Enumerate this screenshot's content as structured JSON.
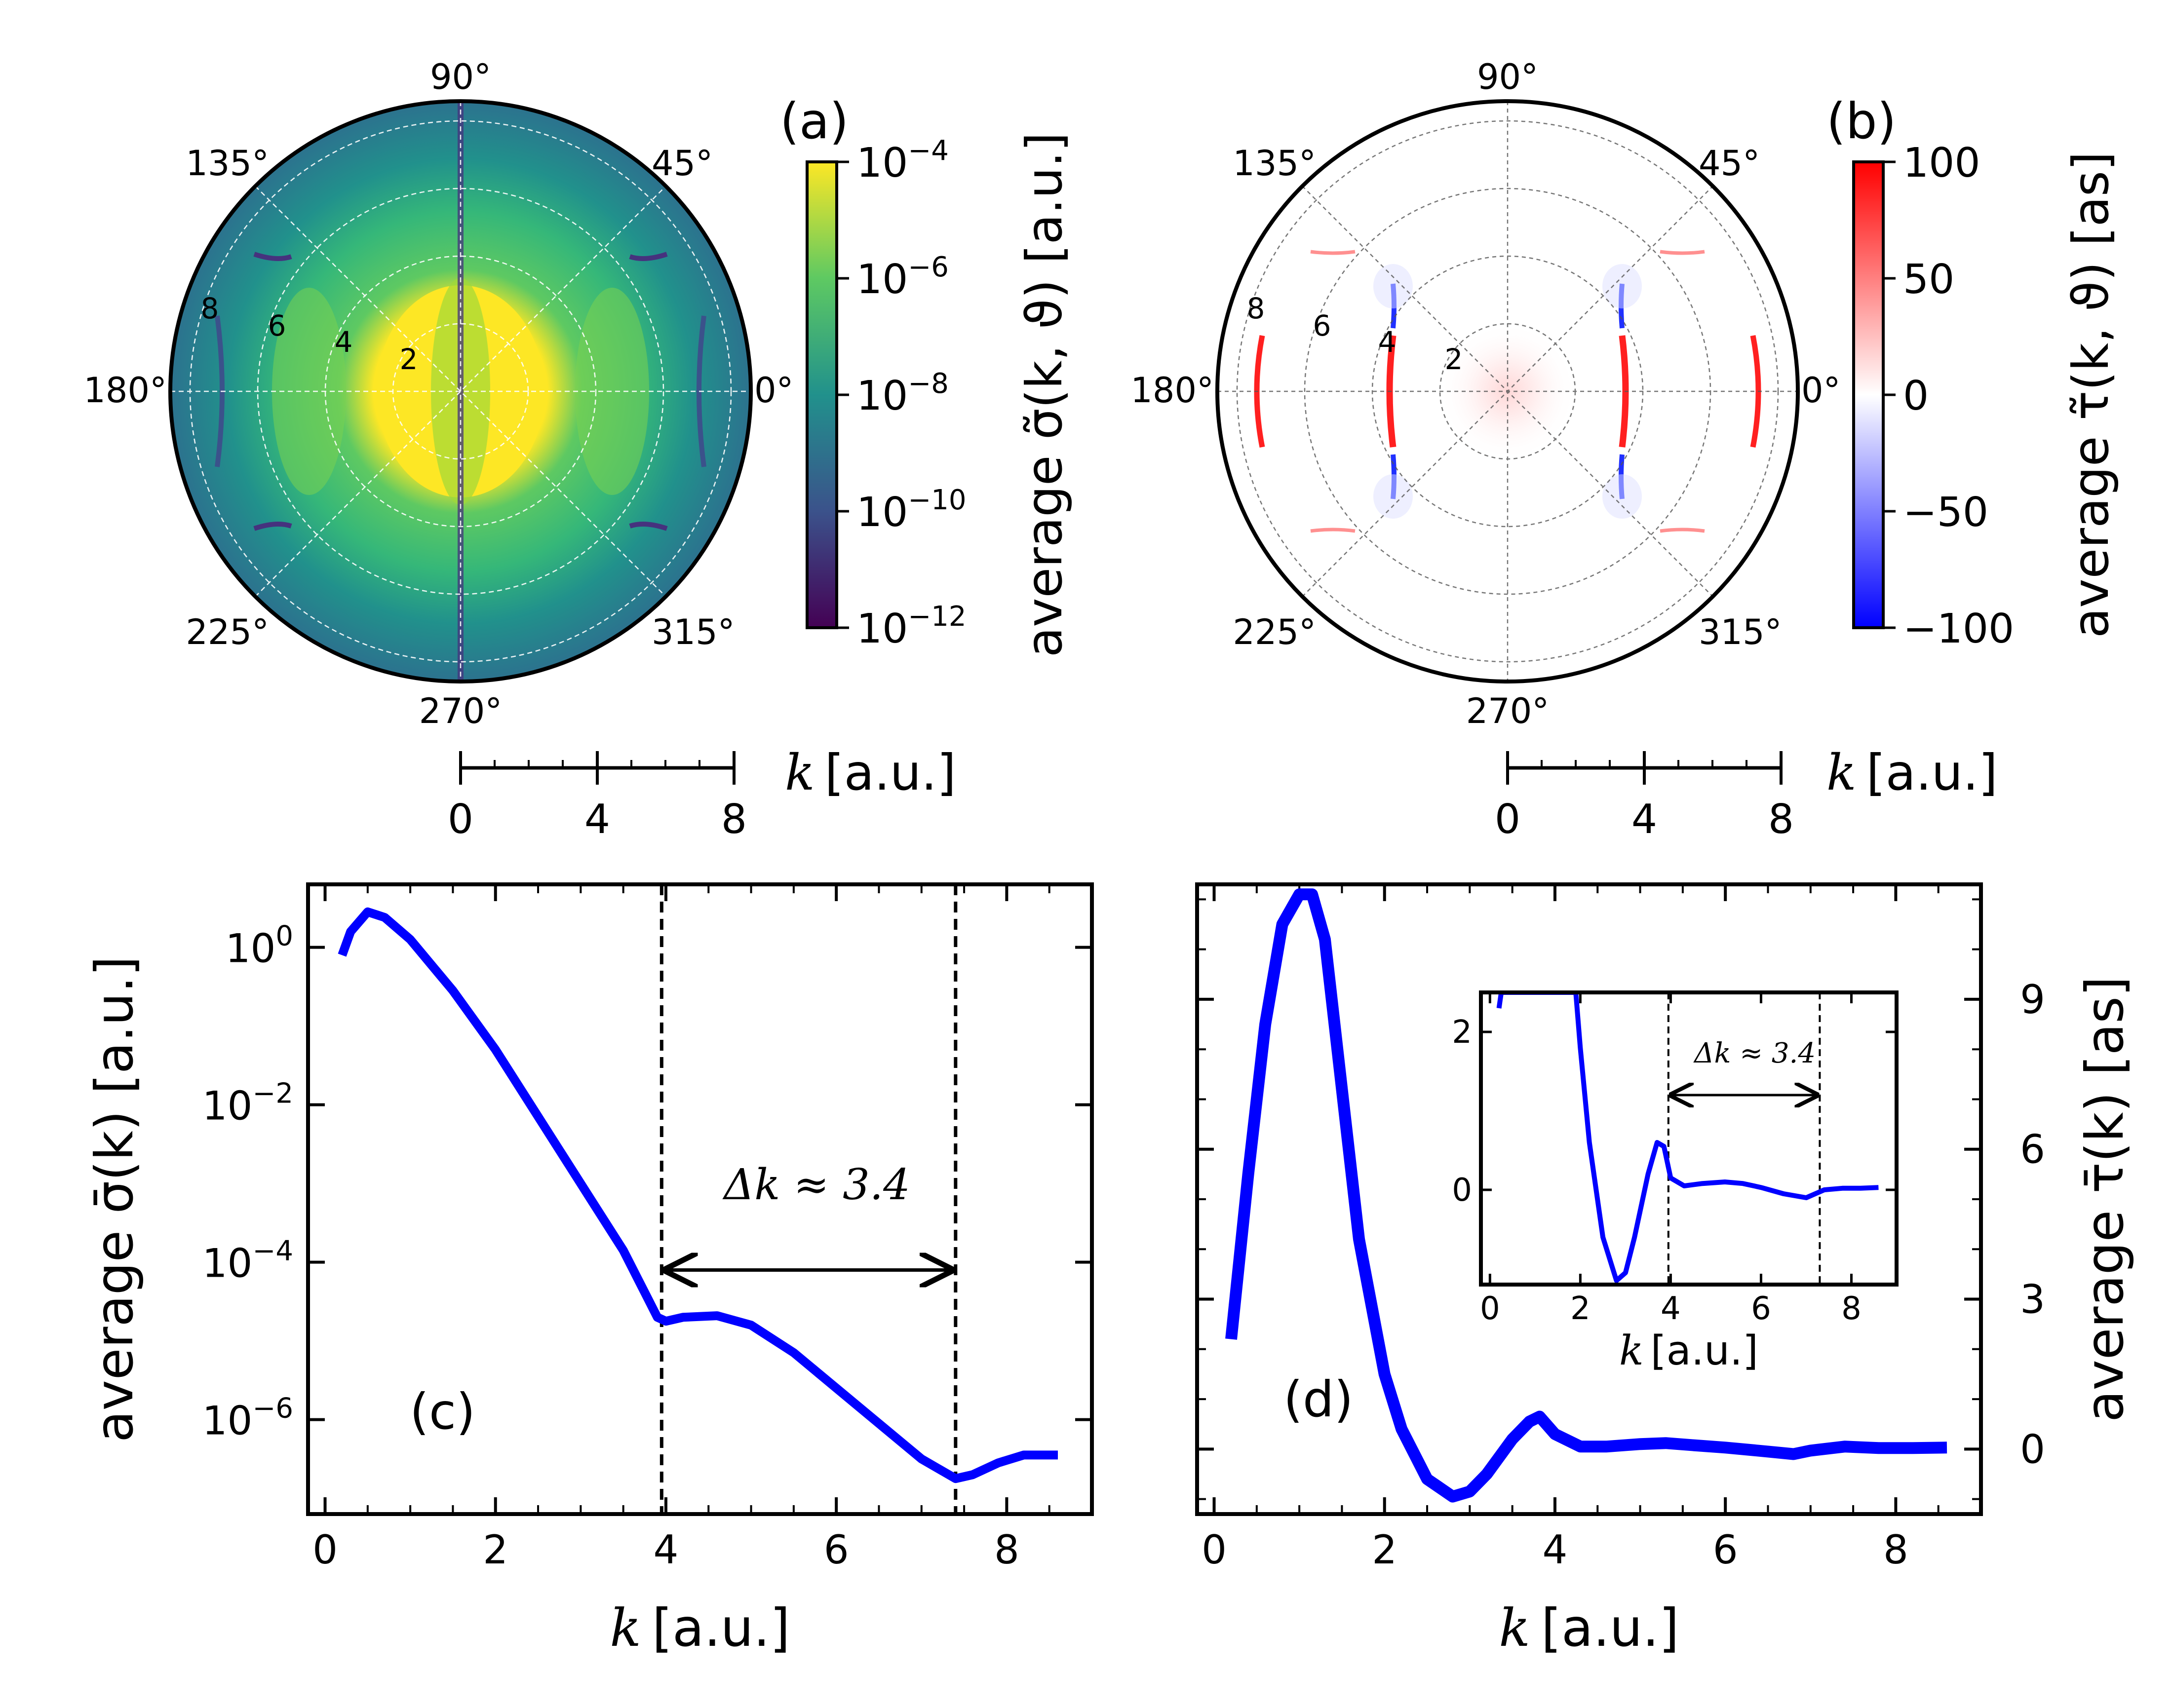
{
  "panels": {
    "a": {
      "label": "(a)",
      "angle_labels": [
        "0°",
        "45°",
        "90°",
        "135°",
        "180°",
        "225°",
        "270°",
        "315°"
      ],
      "radial_labels": [
        "2",
        "4",
        "6",
        "8"
      ],
      "colorbar": {
        "label": "average σ̃(k, ϑ) [a.u.]",
        "ticks": [
          {
            "mant": "10",
            "exp": "−4"
          },
          {
            "mant": "10",
            "exp": "−6"
          },
          {
            "mant": "10",
            "exp": "−8"
          },
          {
            "mant": "10",
            "exp": "−10"
          },
          {
            "mant": "10",
            "exp": "−12"
          }
        ],
        "colormap": "viridis"
      },
      "scale_bar": {
        "ticks": [
          "0",
          "4",
          "8"
        ],
        "label_var": "k",
        "label_unit": "[a.u.]"
      }
    },
    "b": {
      "label": "(b)",
      "angle_labels": [
        "0°",
        "45°",
        "90°",
        "135°",
        "180°",
        "225°",
        "270°",
        "315°"
      ],
      "radial_labels": [
        "2",
        "4",
        "6",
        "8"
      ],
      "colorbar": {
        "label": "average τ̃(k, ϑ) [as]",
        "ticks": [
          "100",
          "50",
          "0",
          "−50",
          "−100"
        ],
        "colormap": "bwr"
      },
      "scale_bar": {
        "ticks": [
          "0",
          "4",
          "8"
        ],
        "label_var": "k",
        "label_unit": "[a.u.]"
      }
    },
    "c": {
      "label": "(c)",
      "xlabel_var": "k",
      "xlabel_unit": "[a.u.]",
      "ylabel": "average σ̄(k) [a.u.]",
      "annotation": "Δk ≈ 3.4",
      "xticks": [
        "0",
        "2",
        "4",
        "6",
        "8"
      ],
      "yticks": [
        {
          "mant": "10",
          "exp": "0"
        },
        {
          "mant": "10",
          "exp": "−2"
        },
        {
          "mant": "10",
          "exp": "−4"
        },
        {
          "mant": "10",
          "exp": "−6"
        }
      ]
    },
    "d": {
      "label": "(d)",
      "xlabel_var": "k",
      "xlabel_unit": "[a.u.]",
      "ylabel": "average τ̄(k) [as]",
      "xticks": [
        "0",
        "2",
        "4",
        "6",
        "8"
      ],
      "yticks": [
        "0",
        "3",
        "6",
        "9"
      ],
      "inset": {
        "xticks": [
          "0",
          "2",
          "4",
          "6",
          "8"
        ],
        "yticks": [
          "0",
          "2"
        ],
        "xlabel_var": "k",
        "xlabel_unit": "[a.u.]",
        "annotation": "Δk ≈ 3.4"
      }
    }
  },
  "colors": {
    "line": "#0000ff",
    "axes": "#000000"
  },
  "chart_data": [
    {
      "panel": "c",
      "type": "line",
      "yscale": "log",
      "xlim": [
        -0.2,
        9.0
      ],
      "ylim_log10": [
        -7.2,
        0.8
      ],
      "x": [
        0.2,
        0.3,
        0.5,
        0.7,
        1.0,
        1.5,
        2.0,
        2.5,
        3.0,
        3.5,
        3.9,
        4.0,
        4.2,
        4.6,
        5.0,
        5.5,
        6.0,
        6.5,
        7.0,
        7.4,
        7.6,
        7.9,
        8.2,
        8.6
      ],
      "y_log10": [
        -0.1,
        0.2,
        0.45,
        0.38,
        0.1,
        -0.55,
        -1.3,
        -2.15,
        -3.0,
        -3.85,
        -4.7,
        -4.75,
        -4.7,
        -4.68,
        -4.8,
        -5.15,
        -5.6,
        -6.05,
        -6.5,
        -6.75,
        -6.7,
        -6.55,
        -6.45,
        -6.45
      ],
      "vlines": [
        3.95,
        7.4
      ],
      "arrow": {
        "from": 3.95,
        "to": 7.4,
        "y_log10": -4.1
      }
    },
    {
      "panel": "d",
      "type": "line",
      "xlim": [
        -0.2,
        9.0
      ],
      "ylim": [
        -1.3,
        11.3
      ],
      "x": [
        0.2,
        0.4,
        0.6,
        0.8,
        1.0,
        1.15,
        1.3,
        1.5,
        1.7,
        2.0,
        2.2,
        2.5,
        2.8,
        3.0,
        3.2,
        3.5,
        3.7,
        3.82,
        4.0,
        4.3,
        4.6,
        5.0,
        5.3,
        5.6,
        6.0,
        6.5,
        6.8,
        7.0,
        7.4,
        7.8,
        8.2,
        8.6
      ],
      "y": [
        2.2,
        5.5,
        8.5,
        10.5,
        11.1,
        11.1,
        10.2,
        7.2,
        4.2,
        1.5,
        0.4,
        -0.6,
        -0.95,
        -0.85,
        -0.5,
        0.2,
        0.55,
        0.65,
        0.3,
        0.05,
        0.05,
        0.1,
        0.12,
        0.08,
        0.03,
        -0.05,
        -0.1,
        -0.03,
        0.05,
        0.02,
        0.02,
        0.03
      ]
    },
    {
      "panel": "d-inset",
      "type": "line",
      "xlim": [
        -0.2,
        9.0
      ],
      "ylim": [
        -1.2,
        2.5
      ],
      "x": [
        0.2,
        0.25,
        1.9,
        2.0,
        2.2,
        2.5,
        2.8,
        3.0,
        3.2,
        3.5,
        3.7,
        3.85,
        4.0,
        4.3,
        4.7,
        5.2,
        5.6,
        6.0,
        6.5,
        7.0,
        7.4,
        7.8,
        8.2,
        8.6
      ],
      "y": [
        2.3,
        2.5,
        2.5,
        1.8,
        0.6,
        -0.6,
        -1.15,
        -1.05,
        -0.6,
        0.2,
        0.6,
        0.55,
        0.15,
        0.05,
        0.08,
        0.1,
        0.08,
        0.03,
        -0.05,
        -0.1,
        0.0,
        0.02,
        0.02,
        0.03
      ],
      "vlines": [
        3.95,
        7.3
      ],
      "arrow": {
        "from": 3.95,
        "to": 7.3,
        "y": 1.2
      }
    }
  ]
}
